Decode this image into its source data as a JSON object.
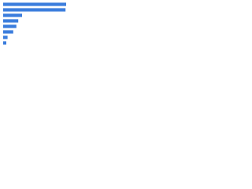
{
  "chart_data": {
    "type": "barh",
    "categories": [
      null,
      null,
      null,
      null,
      null,
      null,
      null,
      null
    ],
    "values": [
      100,
      99,
      30,
      24,
      21,
      16,
      7,
      5
    ],
    "color": "#3b7ddd",
    "xlim": [
      0,
      100
    ]
  }
}
